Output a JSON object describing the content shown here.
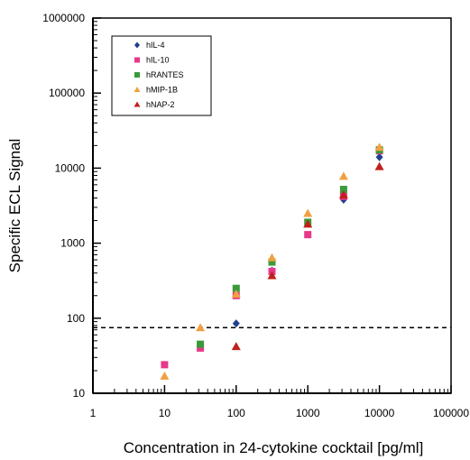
{
  "chart_data": {
    "type": "scatter",
    "title": "",
    "xlabel": "Concentration in 24-cytokine cocktail [pg/ml]",
    "ylabel": "Specific ECL Signal",
    "xscale": "log",
    "yscale": "log",
    "xlim": [
      1,
      100000
    ],
    "ylim": [
      10,
      1000000
    ],
    "x_ticks": [
      1,
      10,
      100,
      1000,
      10000,
      100000
    ],
    "x_tick_labels": [
      "1",
      "10",
      "100",
      "1000",
      "10000",
      "100000"
    ],
    "y_ticks": [
      10,
      100,
      1000,
      10000,
      100000,
      1000000
    ],
    "y_tick_labels": [
      "10",
      "100",
      "1000",
      "10000",
      "100000",
      "1000000"
    ],
    "grid": false,
    "legend_position": "top-left",
    "reference_line": {
      "y": 75,
      "style": "dashed",
      "color": "#000000"
    },
    "series": [
      {
        "name": "hIL-4",
        "marker": "diamond",
        "color": "#1f3f8f",
        "x": [
          100,
          316,
          3160,
          10000
        ],
        "y": [
          85,
          430,
          3800,
          14000
        ]
      },
      {
        "name": "hIL-10",
        "marker": "square",
        "color": "#e8388a",
        "x": [
          10,
          31.6,
          100,
          316,
          1000,
          3160,
          10000
        ],
        "y": [
          24,
          40,
          200,
          420,
          1300,
          4200,
          17000
        ]
      },
      {
        "name": "hRANTES",
        "marker": "square",
        "color": "#3a9a3a",
        "x": [
          31.6,
          100,
          316,
          1000,
          3160,
          10000
        ],
        "y": [
          45,
          250,
          560,
          1900,
          5200,
          17500
        ]
      },
      {
        "name": "hMIP-1B",
        "marker": "triangle",
        "color": "#f0a040",
        "x": [
          10,
          31.6,
          100,
          316,
          1000,
          3160,
          10000
        ],
        "y": [
          17,
          75,
          210,
          640,
          2500,
          7800,
          19000
        ]
      },
      {
        "name": "hNAP-2",
        "marker": "triangle",
        "color": "#c0201c",
        "x": [
          100,
          316,
          1000,
          3160,
          10000
        ],
        "y": [
          42,
          370,
          1800,
          4400,
          10500
        ]
      }
    ]
  }
}
